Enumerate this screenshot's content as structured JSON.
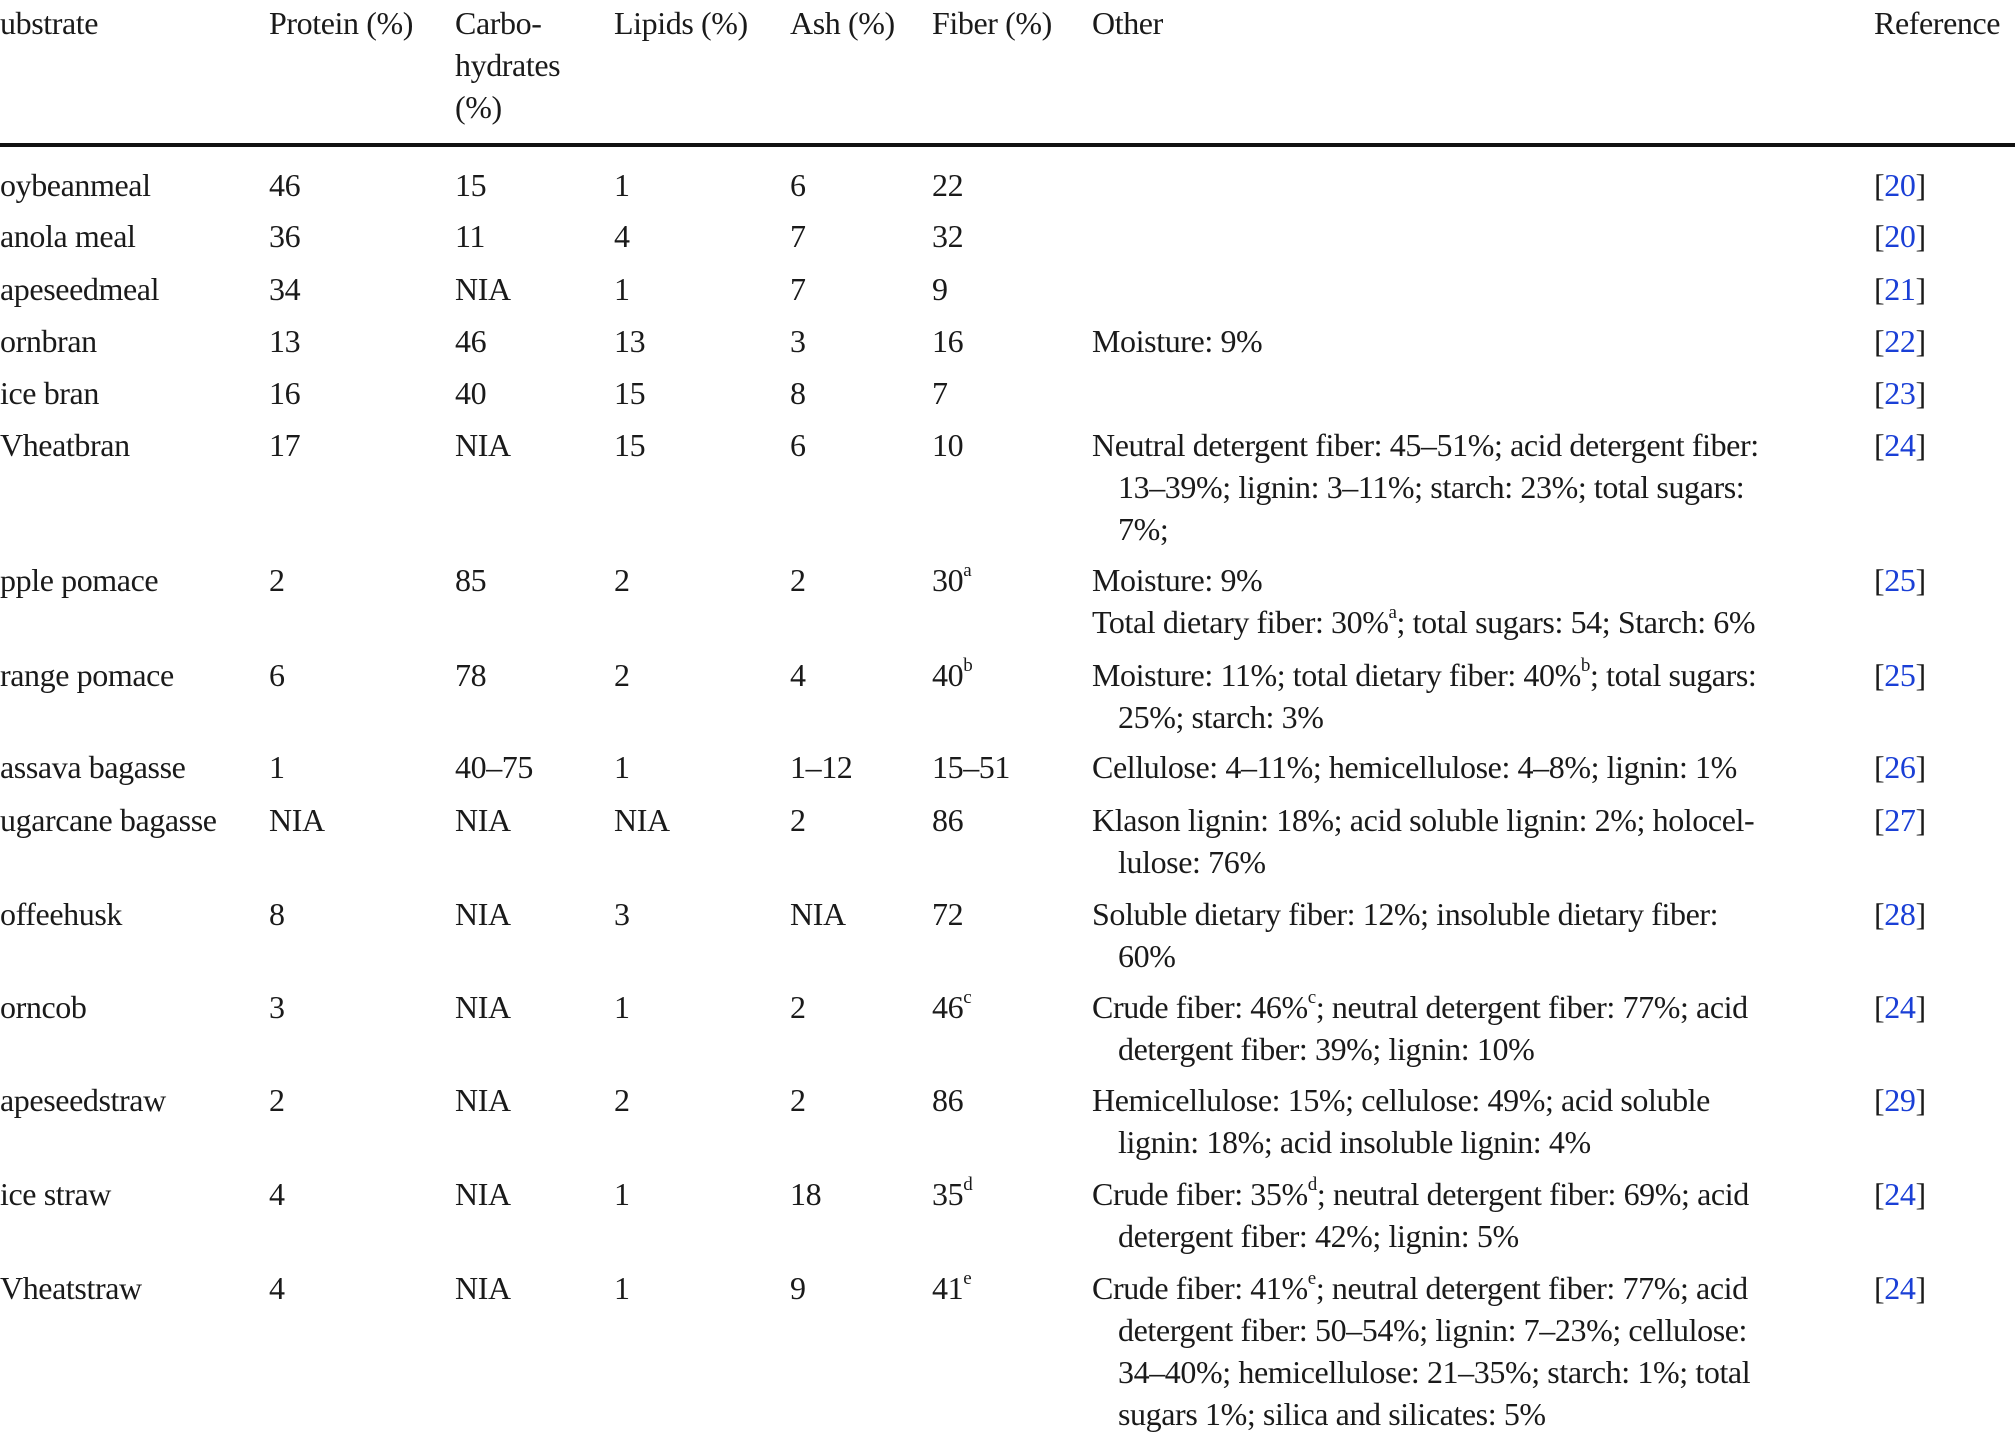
{
  "headers": {
    "substrate": "ubstrate",
    "protein": "Protein (%)",
    "carbohydrates": [
      "Carbo-",
      "hydrates",
      "(%)"
    ],
    "lipids": "Lipids (%)",
    "ash": "Ash (%)",
    "fiber": "Fiber (%)",
    "other": "Other",
    "reference": "Reference"
  },
  "rows": [
    {
      "substrate": "oybeanmeal",
      "protein": "46",
      "carbohydrates": "15",
      "lipids": "1",
      "ash": "6",
      "fiber": "22",
      "fiber_sup": "",
      "other": [],
      "reference": "20"
    },
    {
      "substrate": "anola meal",
      "protein": "36",
      "carbohydrates": "11",
      "lipids": "4",
      "ash": "7",
      "fiber": "32",
      "fiber_sup": "",
      "other": [],
      "reference": "20"
    },
    {
      "substrate": "apeseedmeal",
      "protein": "34",
      "carbohydrates": "NIA",
      "lipids": "1",
      "ash": "7",
      "fiber": "9",
      "fiber_sup": "",
      "other": [],
      "reference": "21"
    },
    {
      "substrate": "ornbran",
      "protein": "13",
      "carbohydrates": "46",
      "lipids": "13",
      "ash": "3",
      "fiber": "16",
      "fiber_sup": "",
      "other": [
        {
          "text": "Moisture: 9%"
        }
      ],
      "reference": "22"
    },
    {
      "substrate": "ice bran",
      "protein": "16",
      "carbohydrates": "40",
      "lipids": "15",
      "ash": "8",
      "fiber": "7",
      "fiber_sup": "",
      "other": [],
      "reference": "23"
    },
    {
      "substrate": "Vheatbran",
      "protein": "17",
      "carbohydrates": "NIA",
      "lipids": "15",
      "ash": "6",
      "fiber": "10",
      "fiber_sup": "",
      "other": [
        {
          "text": "Neutral detergent fiber: 45–51%; acid detergent fiber:"
        },
        {
          "text": "13–39%; lignin: 3–11%; starch: 23%; total sugars:",
          "cont": true
        },
        {
          "text": "7%;",
          "cont": true
        }
      ],
      "reference": "24"
    },
    {
      "substrate": "pple pomace",
      "protein": "2",
      "carbohydrates": "85",
      "lipids": "2",
      "ash": "2",
      "fiber": "30",
      "fiber_sup": "a",
      "other": [
        {
          "text": "Moisture: 9%"
        },
        {
          "text": "Total dietary fiber: 30%",
          "sup": "a",
          "after": "; total sugars: 54; Starch: 6%"
        }
      ],
      "reference": "25"
    },
    {
      "substrate": "range pomace",
      "protein": "6",
      "carbohydrates": "78",
      "lipids": "2",
      "ash": "4",
      "fiber": "40",
      "fiber_sup": "b",
      "other": [
        {
          "text": "Moisture: 11%; total dietary fiber: 40%",
          "sup": "b",
          "after": "; total sugars:"
        },
        {
          "text": "25%; starch: 3%",
          "cont": true
        }
      ],
      "reference": "25"
    },
    {
      "substrate": "assava bagasse",
      "protein": "1",
      "carbohydrates": "40–75",
      "lipids": "1",
      "ash": "1–12",
      "fiber": "15–51",
      "fiber_sup": "",
      "other": [
        {
          "text": "Cellulose: 4–11%; hemicellulose: 4–8%; lignin: 1%"
        }
      ],
      "reference": "26"
    },
    {
      "substrate": "ugarcane bagasse",
      "protein": "NIA",
      "carbohydrates": "NIA",
      "lipids": "NIA",
      "ash": "2",
      "fiber": "86",
      "fiber_sup": "",
      "other": [
        {
          "text": "Klason lignin: 18%; acid soluble lignin: 2%; holocel-"
        },
        {
          "text": "lulose: 76%",
          "cont": true
        }
      ],
      "reference": "27"
    },
    {
      "substrate": "offeehusk",
      "protein": "8",
      "carbohydrates": "NIA",
      "lipids": "3",
      "ash": "NIA",
      "fiber": "72",
      "fiber_sup": "",
      "other": [
        {
          "text": "Soluble dietary fiber: 12%; insoluble dietary fiber:"
        },
        {
          "text": "60%",
          "cont": true
        }
      ],
      "reference": "28"
    },
    {
      "substrate": "orncob",
      "protein": "3",
      "carbohydrates": "NIA",
      "lipids": "1",
      "ash": "2",
      "fiber": "46",
      "fiber_sup": "c",
      "other": [
        {
          "text": "Crude fiber: 46%",
          "sup": "c",
          "after": "; neutral detergent fiber: 77%; acid"
        },
        {
          "text": "detergent fiber: 39%; lignin: 10%",
          "cont": true
        }
      ],
      "reference": "24"
    },
    {
      "substrate": "apeseedstraw",
      "protein": "2",
      "carbohydrates": "NIA",
      "lipids": "2",
      "ash": "2",
      "fiber": "86",
      "fiber_sup": "",
      "other": [
        {
          "text": "Hemicellulose: 15%; cellulose: 49%; acid soluble"
        },
        {
          "text": "lignin: 18%; acid insoluble lignin: 4%",
          "cont": true
        }
      ],
      "reference": "29"
    },
    {
      "substrate": "ice straw",
      "protein": "4",
      "carbohydrates": "NIA",
      "lipids": "1",
      "ash": "18",
      "fiber": "35",
      "fiber_sup": "d",
      "other": [
        {
          "text": "Crude fiber: 35%",
          "sup": "d",
          "after": "; neutral detergent fiber: 69%; acid"
        },
        {
          "text": "detergent fiber: 42%; lignin: 5%",
          "cont": true
        }
      ],
      "reference": "24"
    },
    {
      "substrate": "Vheatstraw",
      "protein": "4",
      "carbohydrates": "NIA",
      "lipids": "1",
      "ash": "9",
      "fiber": "41",
      "fiber_sup": "e",
      "other": [
        {
          "text": "Crude fiber: 41%",
          "sup": "e",
          "after": "; neutral detergent fiber: 77%; acid"
        },
        {
          "text": "detergent fiber: 50–54%; lignin: 7–23%; cellulose:",
          "cont": true
        },
        {
          "text": "34–40%; hemicellulose: 21–35%; starch: 1%; total",
          "cont": true
        },
        {
          "text": "sugars 1%; silica and silicates: 5%",
          "cont": true
        }
      ],
      "reference": "24"
    }
  ],
  "colors": {
    "link": "#1a3fd6",
    "text": "#1a1a1a"
  }
}
